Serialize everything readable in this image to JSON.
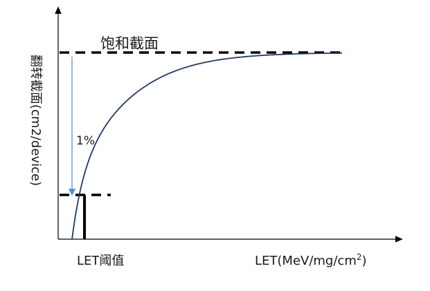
{
  "chart_data": {
    "type": "line",
    "title": "",
    "ylabel": "翻转截面(cm2/device)",
    "xlabel": "LET(MeV/mg/cm²)",
    "annotations": {
      "saturation": "饱和截面",
      "threshold": "LET阈值",
      "percent": "1%"
    },
    "colors": {
      "axes": "#000000",
      "curve": "#1f3864",
      "dashed": "#000000",
      "arrow": "#5b8fd6"
    },
    "grid": false,
    "legend": "none",
    "x_ticks": "none",
    "y_ticks": "none",
    "curve_shape": "saturating rise from threshold to saturation cross-section"
  }
}
